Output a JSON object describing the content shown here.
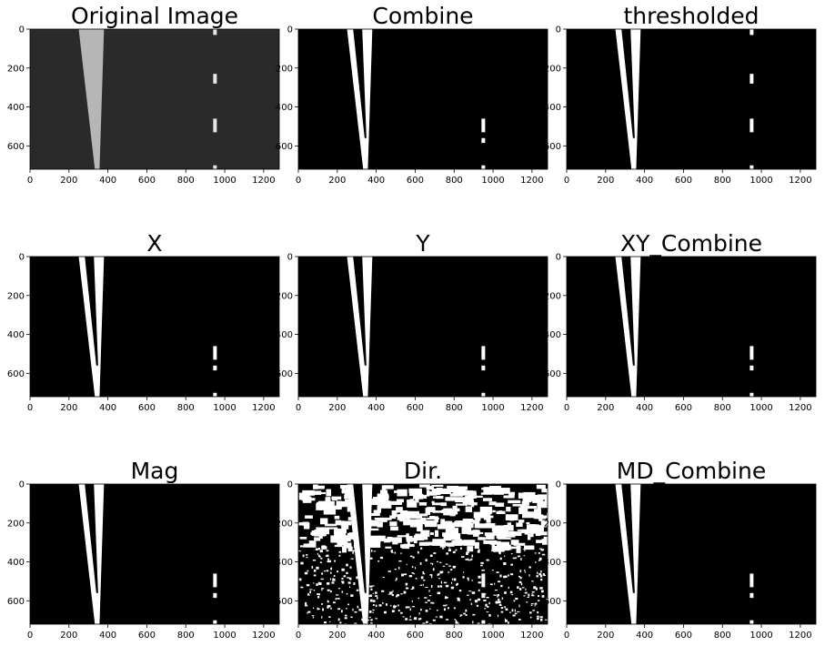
{
  "panels": [
    {
      "id": "original",
      "title": "Original Image",
      "kind": "original"
    },
    {
      "id": "combine",
      "title": "Combine",
      "kind": "binary"
    },
    {
      "id": "thresholded",
      "title": "thresholded",
      "kind": "thresholded"
    },
    {
      "id": "x",
      "title": "X",
      "kind": "binary"
    },
    {
      "id": "y",
      "title": "Y",
      "kind": "binary"
    },
    {
      "id": "xy-combine",
      "title": "XY_Combine",
      "kind": "binary"
    },
    {
      "id": "mag",
      "title": "Mag",
      "kind": "binary"
    },
    {
      "id": "dir",
      "title": "Dir.",
      "kind": "dir"
    },
    {
      "id": "md-combine",
      "title": "MD_Combine",
      "kind": "binary"
    }
  ],
  "axes": {
    "x_ticks": [
      0,
      200,
      400,
      600,
      800,
      1000,
      1200
    ],
    "y_ticks": [
      0,
      200,
      400,
      600
    ],
    "x_range": [
      0,
      1280
    ],
    "y_range": [
      0,
      720
    ],
    "y_inverted": true
  },
  "colors": {
    "background": "#ffffff",
    "image_background": "#000000",
    "lane": "#ffffff",
    "original_background": "#2a2a2a",
    "original_lane": "#e6e6e6"
  },
  "lane_markers": {
    "left_lane_bottom_x": 345,
    "left_lane_top_inner_x": 250,
    "left_lane_top_outer_x": 380,
    "right_lane_x": 950
  }
}
